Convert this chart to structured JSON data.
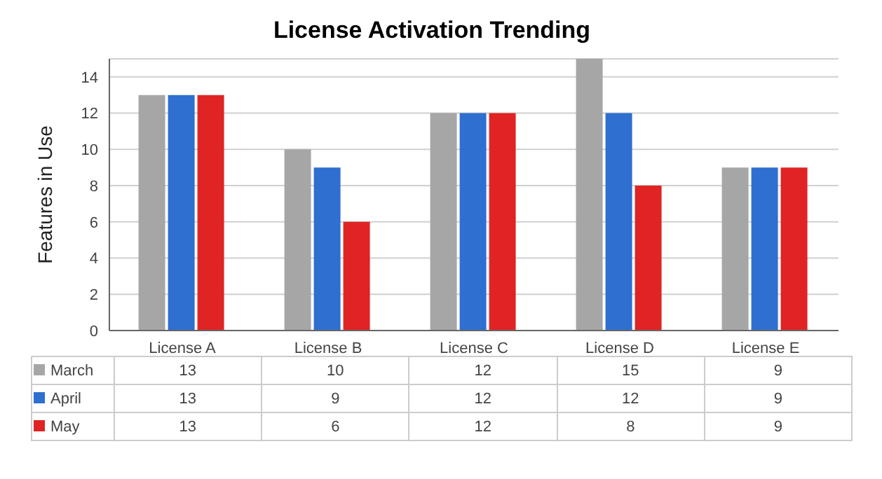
{
  "chart_data": {
    "type": "bar",
    "title": "License Activation Trending",
    "ylabel": "Features in Use",
    "categories": [
      "License A",
      "License B",
      "License C",
      "License D",
      "License E"
    ],
    "series": [
      {
        "name": "March",
        "color": "#a6a6a6",
        "values": [
          13,
          10,
          12,
          15,
          9
        ]
      },
      {
        "name": "April",
        "color": "#2e6fd0",
        "values": [
          13,
          9,
          12,
          12,
          9
        ]
      },
      {
        "name": "May",
        "color": "#e02424",
        "values": [
          13,
          6,
          12,
          8,
          9
        ]
      }
    ],
    "ylim": [
      0,
      15
    ],
    "yticks": [
      0,
      2,
      4,
      6,
      8,
      10,
      12,
      14
    ],
    "grid": "y",
    "legend": "bottom",
    "data_labels": true
  }
}
